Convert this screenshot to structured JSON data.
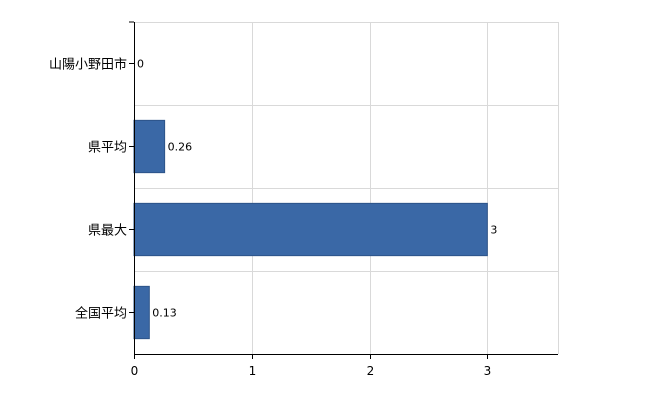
{
  "chart_data": {
    "type": "bar",
    "orientation": "horizontal",
    "categories": [
      "山陽小野田市",
      "県平均",
      "県最大",
      "全国平均"
    ],
    "values": [
      0,
      0.26,
      3,
      0.13
    ],
    "value_labels": [
      "0",
      "0.26",
      "3",
      "0.13"
    ],
    "xlim": [
      0,
      3.6
    ],
    "x_ticks": [
      0,
      1,
      2,
      3
    ],
    "x_tick_labels": [
      "0",
      "1",
      "2",
      "3"
    ],
    "grid": true,
    "legend": "none",
    "bar_color": "#3a68a6"
  }
}
